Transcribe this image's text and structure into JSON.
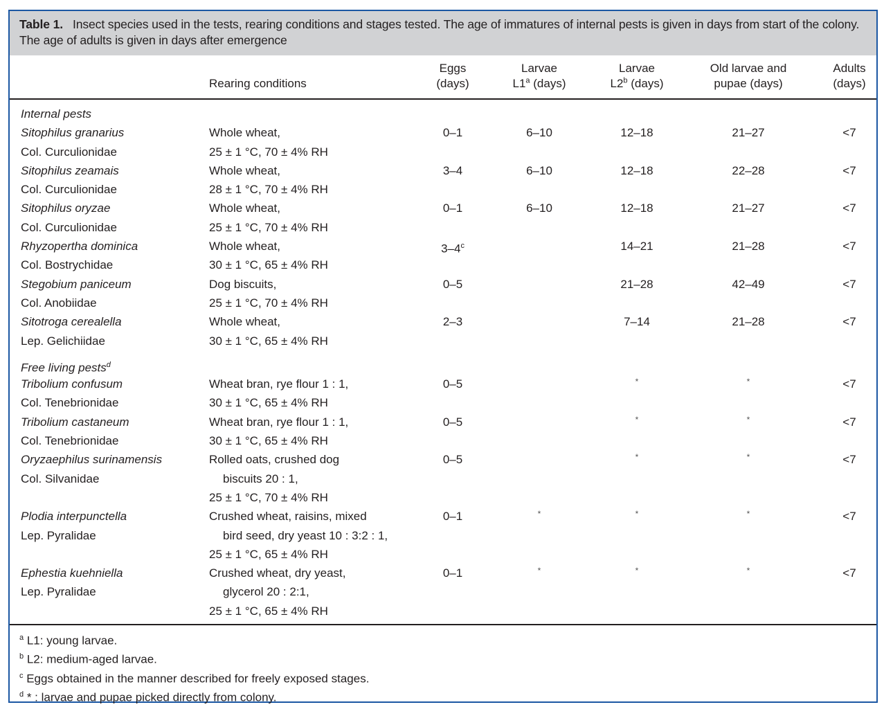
{
  "caption": {
    "label": "Table 1.",
    "text": "Insect species used in the tests, rearing conditions and stages tested. The age of immatures of internal pests is given in days from start of the colony. The age of adults is given in days after emergence"
  },
  "headers": {
    "rearing": "Rearing conditions",
    "eggs": [
      "Eggs",
      "(days)"
    ],
    "l1": {
      "line1": "Larvae",
      "pre": "L1",
      "sup": "a",
      "post": " (days)"
    },
    "l2": {
      "line1": "Larvae",
      "pre": "L2",
      "sup": "b",
      "post": " (days)"
    },
    "old": [
      "Old larvae and",
      "pupae (days)"
    ],
    "adults": [
      "Adults",
      "(days)"
    ]
  },
  "sections": [
    {
      "title": "Internal pests",
      "sup": "",
      "rows": [
        {
          "species": "Sitophilus granarius",
          "family": "Col. Curculionidae",
          "conditions": [
            "Whole wheat,",
            "25 ± 1 °C, 70 ± 4% RH"
          ],
          "eggs": "0–1",
          "eggs_sup": "",
          "l1": "6–10",
          "l2": "12–18",
          "old": "21–27",
          "adults": "<7"
        },
        {
          "species": "Sitophilus zeamais",
          "family": "Col. Curculionidae",
          "conditions": [
            "Whole wheat,",
            "28 ± 1 °C, 70 ± 4% RH"
          ],
          "eggs": "3–4",
          "eggs_sup": "",
          "l1": "6–10",
          "l2": "12–18",
          "old": "22–28",
          "adults": "<7"
        },
        {
          "species": "Sitophilus oryzae",
          "family": "Col. Curculionidae",
          "conditions": [
            "Whole wheat,",
            "25 ± 1 °C, 70 ± 4% RH"
          ],
          "eggs": "0–1",
          "eggs_sup": "",
          "l1": "6–10",
          "l2": "12–18",
          "old": "21–27",
          "adults": "<7"
        },
        {
          "species": "Rhyzopertha dominica",
          "family": "Col. Bostrychidae",
          "conditions": [
            "Whole wheat,",
            "30 ± 1 °C, 65 ± 4% RH"
          ],
          "eggs": "3–4",
          "eggs_sup": "c",
          "l1": "",
          "l2": "14–21",
          "old": "21–28",
          "adults": "<7"
        },
        {
          "species": "Stegobium paniceum",
          "family": "Col. Anobiidae",
          "conditions": [
            "Dog biscuits,",
            "25 ± 1 °C, 70 ± 4% RH"
          ],
          "eggs": "0–5",
          "eggs_sup": "",
          "l1": "",
          "l2": "21–28",
          "old": "42–49",
          "adults": "<7"
        },
        {
          "species": "Sitotroga cerealella",
          "family": "Lep. Gelichiidae",
          "conditions": [
            "Whole wheat,",
            "30 ± 1 °C, 65 ± 4% RH"
          ],
          "eggs": "2–3",
          "eggs_sup": "",
          "l1": "",
          "l2": "7–14",
          "old": "21–28",
          "adults": "<7"
        }
      ]
    },
    {
      "title": "Free living pests",
      "sup": "d",
      "rows": [
        {
          "species": "Tribolium confusum",
          "family": "Col. Tenebrionidae",
          "conditions": [
            "Wheat bran, rye flour 1 : 1,",
            "30 ± 1 °C, 65 ± 4% RH"
          ],
          "eggs": "0–5",
          "eggs_sup": "",
          "l1": "",
          "l2": "*",
          "old": "*",
          "adults": "<7"
        },
        {
          "species": "Tribolium castaneum",
          "family": "Col. Tenebrionidae",
          "conditions": [
            "Wheat bran, rye flour 1 : 1,",
            "30 ± 1 °C, 65 ± 4% RH"
          ],
          "eggs": "0–5",
          "eggs_sup": "",
          "l1": "",
          "l2": "*",
          "old": "*",
          "adults": "<7"
        },
        {
          "species": "Oryzaephilus surinamensis",
          "family": "Col. Silvanidae",
          "conditions": [
            "Rolled oats, crushed dog",
            "biscuits 20 : 1,",
            "25 ± 1 °C, 70 ± 4% RH"
          ],
          "eggs": "0–5",
          "eggs_sup": "",
          "l1": "",
          "l2": "*",
          "old": "*",
          "adults": "<7"
        },
        {
          "species": "Plodia interpunctella",
          "family": "Lep. Pyralidae",
          "conditions": [
            "Crushed wheat, raisins, mixed",
            "bird seed, dry yeast 10 : 3:2 : 1,",
            "25 ± 1 °C, 65 ± 4% RH"
          ],
          "eggs": "0–1",
          "eggs_sup": "",
          "l1": "*",
          "l2": "*",
          "old": "*",
          "adults": "<7"
        },
        {
          "species": "Ephestia kuehniella",
          "family": "Lep. Pyralidae",
          "conditions": [
            "Crushed wheat, dry yeast,",
            "glycerol 20 : 2:1,",
            "25 ± 1 °C, 65 ± 4% RH"
          ],
          "eggs": "0–1",
          "eggs_sup": "",
          "l1": "*",
          "l2": "*",
          "old": "*",
          "adults": "<7"
        }
      ]
    }
  ],
  "footnotes": [
    {
      "mark": "a",
      "text": " L1: young larvae."
    },
    {
      "mark": "b",
      "text": " L2: medium-aged larvae."
    },
    {
      "mark": "c",
      "text": " Eggs obtained in the manner described for freely exposed stages."
    },
    {
      "mark": "d",
      "text": " * : larvae and pupae picked directly from colony."
    }
  ],
  "colors": {
    "border": "#1b57a3",
    "caption_bg": "#d1d2d4"
  }
}
